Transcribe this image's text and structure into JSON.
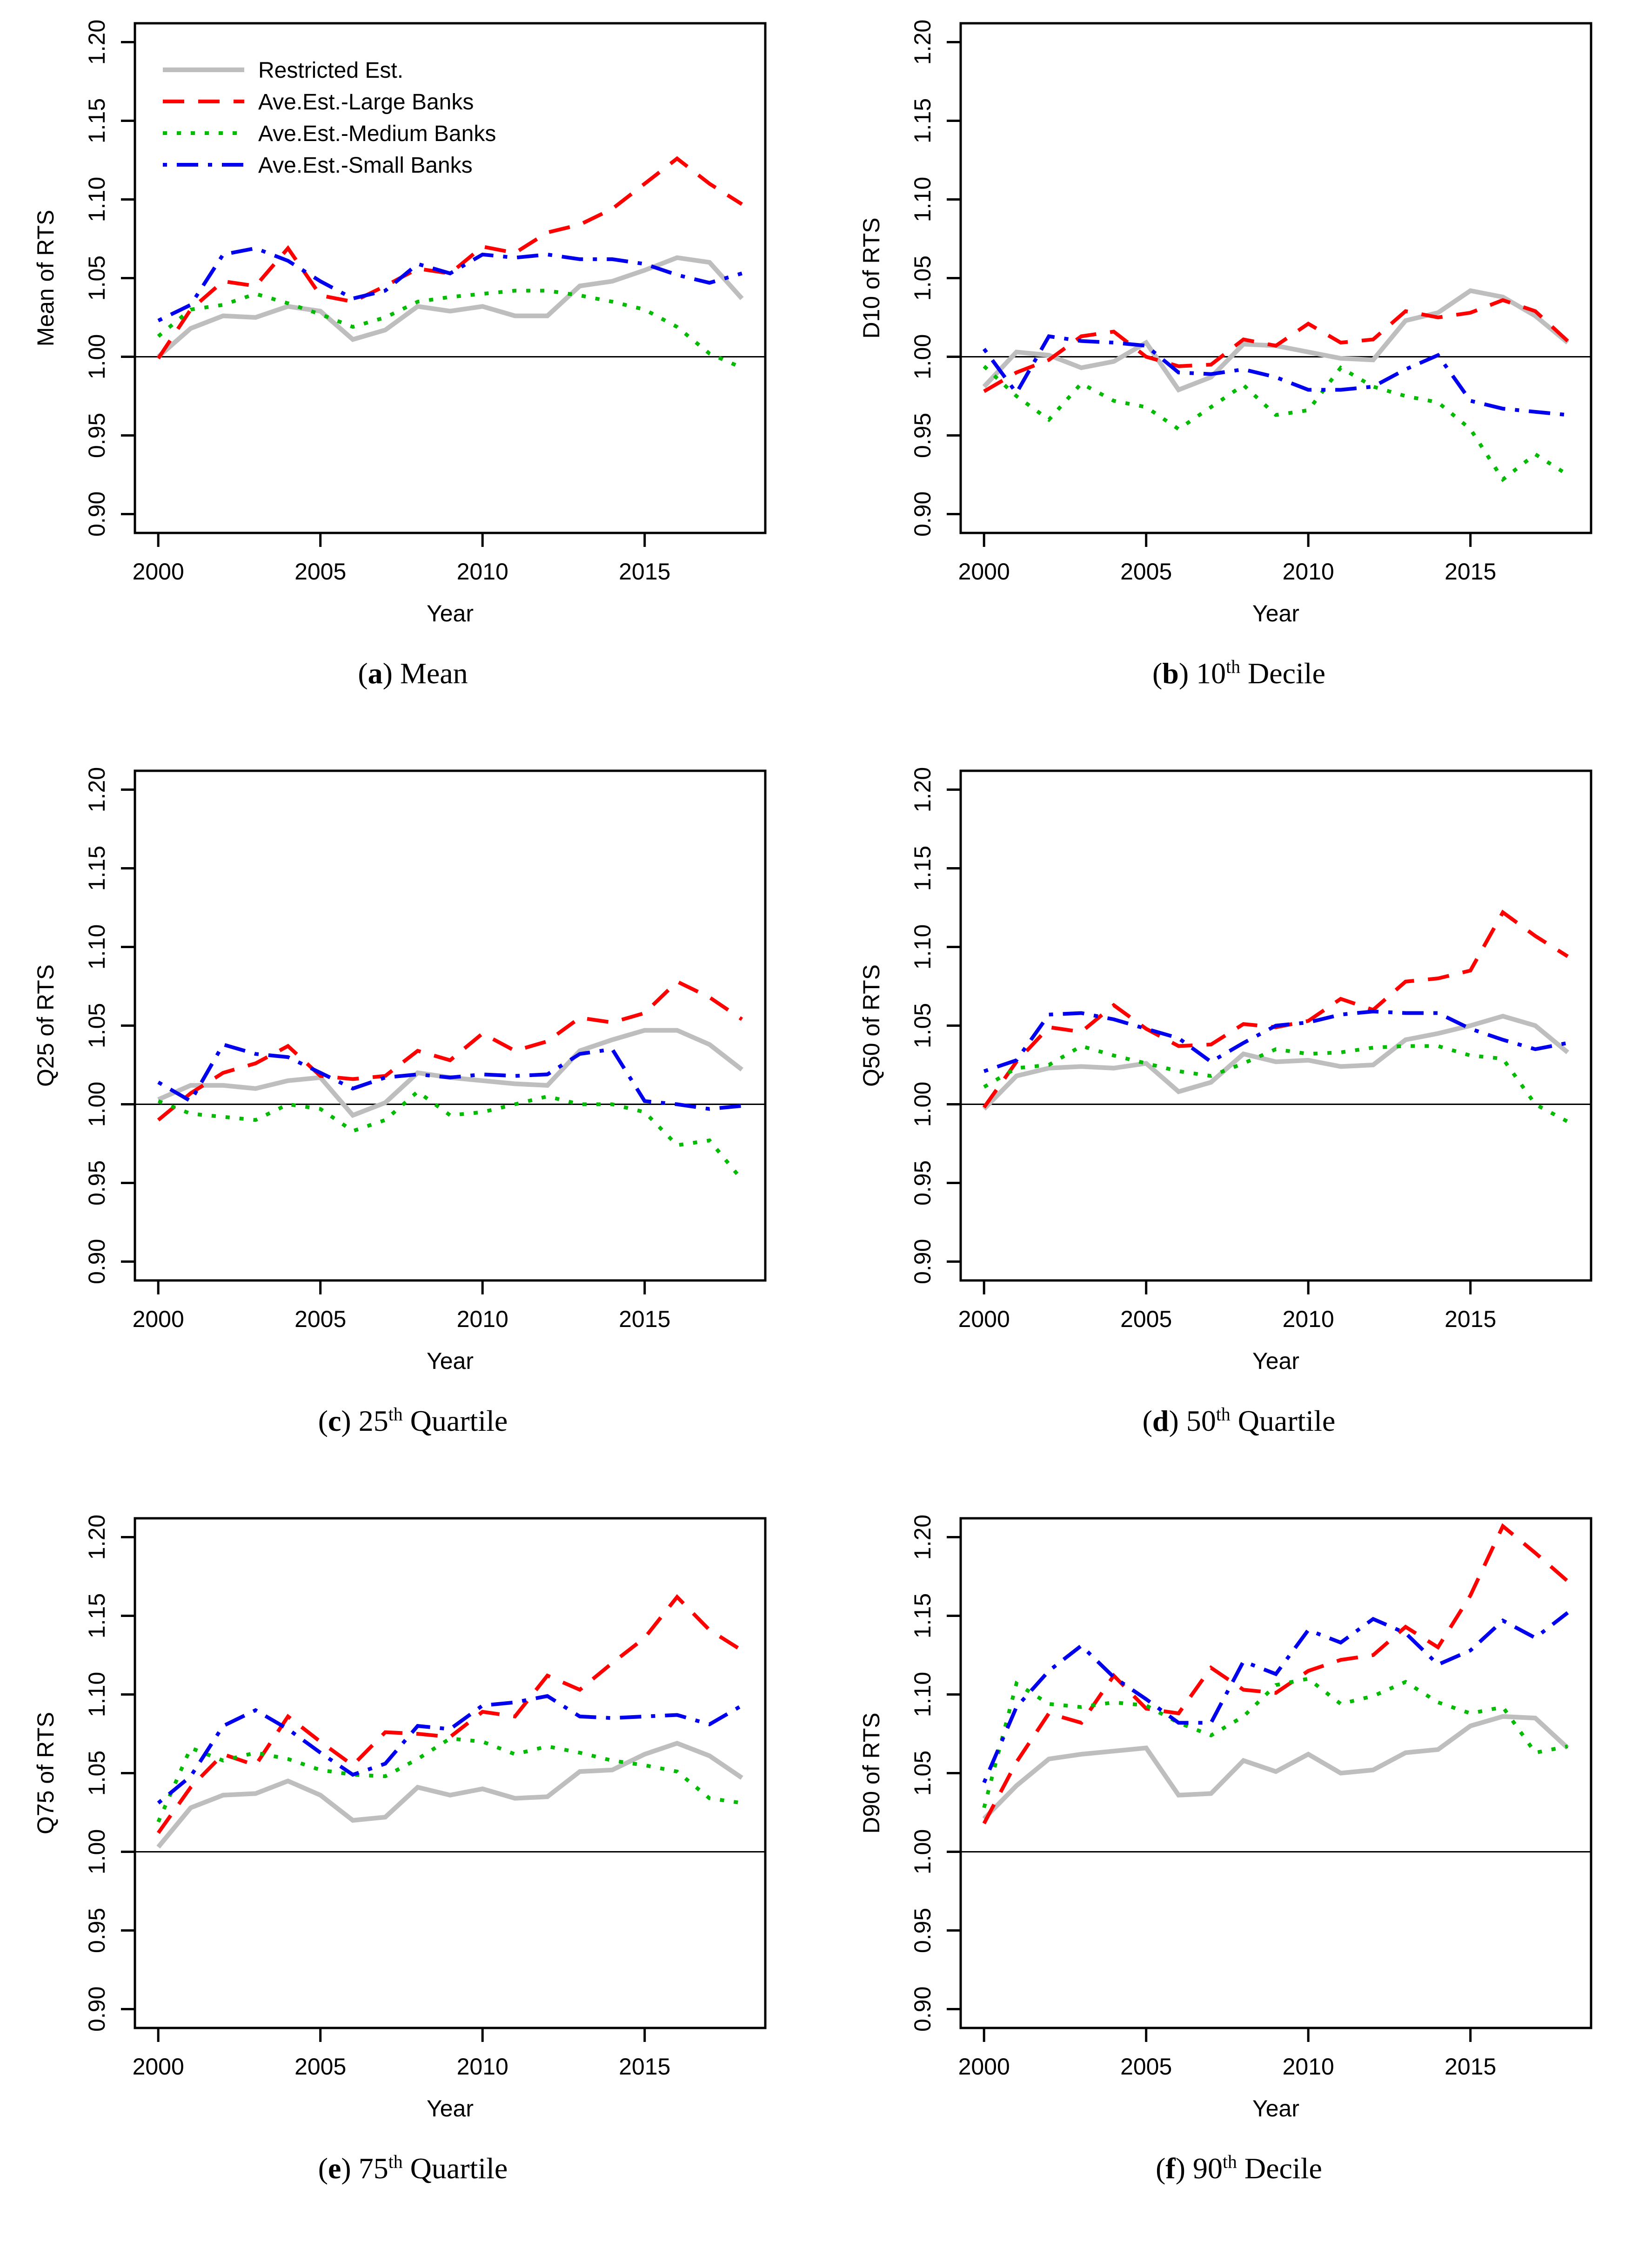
{
  "page": {
    "background": "#FFFFFF"
  },
  "axes": {
    "xlabel": "Year",
    "x_tick_labels": [
      "2000",
      "2005",
      "2010",
      "2015"
    ],
    "x_tick_years": [
      2000,
      2005,
      2010,
      2015
    ],
    "y_tick_labels": [
      "0.90",
      "0.95",
      "1.00",
      "1.05",
      "1.10",
      "1.15",
      "1.20"
    ],
    "y_tick_values": [
      0.9,
      0.95,
      1.0,
      1.05,
      1.1,
      1.15,
      1.2
    ],
    "x_range": [
      2000,
      2018
    ],
    "ylim": [
      0.9,
      1.2
    ],
    "reference_line_y": 1.0,
    "grid": "off",
    "y_tick_label_rotation_deg": 90
  },
  "legend": {
    "position": "top-left-of-panel-a",
    "items": [
      {
        "label": "Restricted Est.",
        "color": "#BEBEBE",
        "line_style": "solid"
      },
      {
        "label": "Ave.Est.-Large Banks",
        "color": "#FF0000",
        "line_style": "dashed"
      },
      {
        "label": "Ave.Est.-Medium Banks",
        "color": "#00BB00",
        "line_style": "dotted"
      },
      {
        "label": "Ave.Est.-Small Banks",
        "color": "#0000EE",
        "line_style": "dash-dot"
      }
    ]
  },
  "captions": [
    {
      "open": "(",
      "letter": "a",
      "close": ") ",
      "num": "",
      "sup": "",
      "text": "Mean"
    },
    {
      "open": "(",
      "letter": "b",
      "close": ") ",
      "num": "10",
      "sup": "th",
      "text": "Decile"
    },
    {
      "open": "(",
      "letter": "c",
      "close": ") ",
      "num": "25",
      "sup": "th",
      "text": "Quartile"
    },
    {
      "open": "(",
      "letter": "d",
      "close": ") ",
      "num": "50",
      "sup": "th",
      "text": "Quartile"
    },
    {
      "open": "(",
      "letter": "e",
      "close": ") ",
      "num": "75",
      "sup": "th",
      "text": "Quartile"
    },
    {
      "open": "(",
      "letter": "f",
      "close": ") ",
      "num": "90",
      "sup": "th",
      "text": "Decile"
    }
  ],
  "chart_data": [
    {
      "type": "line",
      "panel": "a",
      "caption": "(a) Mean",
      "ylabel": "Mean of RTS",
      "xlabel": "Year",
      "ylim": [
        0.9,
        1.2
      ],
      "has_legend": true,
      "x": [
        2000,
        2001,
        2002,
        2003,
        2004,
        2005,
        2006,
        2007,
        2008,
        2009,
        2010,
        2011,
        2012,
        2013,
        2014,
        2015,
        2016,
        2017,
        2018
      ],
      "series": [
        {
          "name": "Restricted Est.",
          "color": "#BEBEBE",
          "style": "solid",
          "values": [
            1.0,
            1.018,
            1.026,
            1.025,
            1.032,
            1.029,
            1.011,
            1.017,
            1.032,
            1.029,
            1.032,
            1.026,
            1.026,
            1.045,
            1.048,
            1.055,
            1.063,
            1.06,
            1.037
          ]
        },
        {
          "name": "Ave.Est.-Large Banks",
          "color": "#FF0000",
          "style": "dashed",
          "values": [
            0.999,
            1.03,
            1.048,
            1.045,
            1.069,
            1.039,
            1.035,
            1.045,
            1.056,
            1.053,
            1.07,
            1.066,
            1.079,
            1.084,
            1.094,
            1.11,
            1.126,
            1.11,
            1.097
          ]
        },
        {
          "name": "Ave.Est.-Medium Banks",
          "color": "#00BB00",
          "style": "dotted",
          "values": [
            1.013,
            1.03,
            1.033,
            1.04,
            1.034,
            1.027,
            1.019,
            1.025,
            1.035,
            1.038,
            1.04,
            1.042,
            1.042,
            1.039,
            1.035,
            1.03,
            1.019,
            1.002,
            0.993
          ]
        },
        {
          "name": "Ave.Est.-Small Banks",
          "color": "#0000EE",
          "style": "dash-dot",
          "values": [
            1.023,
            1.033,
            1.065,
            1.069,
            1.061,
            1.048,
            1.037,
            1.042,
            1.059,
            1.053,
            1.065,
            1.063,
            1.065,
            1.062,
            1.062,
            1.059,
            1.052,
            1.047,
            1.053
          ]
        }
      ]
    },
    {
      "type": "line",
      "panel": "b",
      "caption": "(b) 10th Decile",
      "ylabel": "D10 of RTS",
      "xlabel": "Year",
      "ylim": [
        0.9,
        1.2
      ],
      "has_legend": false,
      "x": [
        2000,
        2001,
        2002,
        2003,
        2004,
        2005,
        2006,
        2007,
        2008,
        2009,
        2010,
        2011,
        2012,
        2013,
        2014,
        2015,
        2016,
        2017,
        2018
      ],
      "series": [
        {
          "name": "Restricted Est.",
          "color": "#BEBEBE",
          "style": "solid",
          "values": [
            0.981,
            1.003,
            1.001,
            0.993,
            0.997,
            1.009,
            0.979,
            0.987,
            1.008,
            1.007,
            1.003,
            0.999,
            0.998,
            1.023,
            1.028,
            1.042,
            1.038,
            1.026,
            1.009
          ]
        },
        {
          "name": "Ave.Est.-Large Banks",
          "color": "#FF0000",
          "style": "dashed",
          "values": [
            0.978,
            0.99,
            0.998,
            1.013,
            1.016,
            1.0,
            0.994,
            0.995,
            1.011,
            1.007,
            1.021,
            1.009,
            1.011,
            1.029,
            1.025,
            1.028,
            1.036,
            1.029,
            1.01
          ]
        },
        {
          "name": "Ave.Est.-Medium Banks",
          "color": "#00BB00",
          "style": "dotted",
          "values": [
            0.994,
            0.975,
            0.96,
            0.983,
            0.972,
            0.968,
            0.954,
            0.968,
            0.982,
            0.963,
            0.966,
            0.993,
            0.981,
            0.975,
            0.971,
            0.954,
            0.922,
            0.938,
            0.925
          ]
        },
        {
          "name": "Ave.Est.-Small Banks",
          "color": "#0000EE",
          "style": "dash-dot",
          "values": [
            1.005,
            0.977,
            1.013,
            1.01,
            1.009,
            1.007,
            0.99,
            0.989,
            0.992,
            0.987,
            0.979,
            0.979,
            0.981,
            0.992,
            1.001,
            0.972,
            0.967,
            0.965,
            0.963
          ]
        }
      ]
    },
    {
      "type": "line",
      "panel": "c",
      "caption": "(c) 25th Quartile",
      "ylabel": "Q25 of RTS",
      "xlabel": "Year",
      "ylim": [
        0.9,
        1.2
      ],
      "has_legend": false,
      "x": [
        2000,
        2001,
        2002,
        2003,
        2004,
        2005,
        2006,
        2007,
        2008,
        2009,
        2010,
        2011,
        2012,
        2013,
        2014,
        2015,
        2016,
        2017,
        2018
      ],
      "series": [
        {
          "name": "Restricted Est.",
          "color": "#BEBEBE",
          "style": "solid",
          "values": [
            1.003,
            1.012,
            1.012,
            1.01,
            1.015,
            1.017,
            0.993,
            1.001,
            1.02,
            1.017,
            1.015,
            1.013,
            1.012,
            1.034,
            1.041,
            1.047,
            1.047,
            1.038,
            1.022
          ]
        },
        {
          "name": "Ave.Est.-Large Banks",
          "color": "#FF0000",
          "style": "dashed",
          "values": [
            0.99,
            1.007,
            1.02,
            1.026,
            1.037,
            1.018,
            1.016,
            1.018,
            1.034,
            1.028,
            1.045,
            1.034,
            1.04,
            1.055,
            1.052,
            1.058,
            1.078,
            1.068,
            1.054
          ]
        },
        {
          "name": "Ave.Est.-Medium Banks",
          "color": "#00BB00",
          "style": "dotted",
          "values": [
            1.002,
            0.994,
            0.992,
            0.99,
            1.0,
            0.997,
            0.983,
            0.99,
            1.008,
            0.993,
            0.995,
            1.0,
            1.005,
            1.0,
            1.0,
            0.995,
            0.974,
            0.977,
            0.952
          ]
        },
        {
          "name": "Ave.Est.-Small Banks",
          "color": "#0000EE",
          "style": "dash-dot",
          "values": [
            1.014,
            1.002,
            1.038,
            1.032,
            1.03,
            1.02,
            1.01,
            1.017,
            1.019,
            1.017,
            1.019,
            1.018,
            1.019,
            1.032,
            1.035,
            1.002,
            1.0,
            0.997,
            0.999
          ]
        }
      ]
    },
    {
      "type": "line",
      "panel": "d",
      "caption": "(d) 50th Quartile",
      "ylabel": "Q50 of RTS",
      "xlabel": "Year",
      "ylim": [
        0.9,
        1.2
      ],
      "has_legend": false,
      "x": [
        2000,
        2001,
        2002,
        2003,
        2004,
        2005,
        2006,
        2007,
        2008,
        2009,
        2010,
        2011,
        2012,
        2013,
        2014,
        2015,
        2016,
        2017,
        2018
      ],
      "series": [
        {
          "name": "Restricted Est.",
          "color": "#BEBEBE",
          "style": "solid",
          "values": [
            0.997,
            1.018,
            1.023,
            1.024,
            1.023,
            1.026,
            1.008,
            1.014,
            1.032,
            1.027,
            1.028,
            1.024,
            1.025,
            1.041,
            1.045,
            1.05,
            1.056,
            1.05,
            1.033
          ]
        },
        {
          "name": "Ave.Est.-Large Banks",
          "color": "#FF0000",
          "style": "dashed",
          "values": [
            0.998,
            1.027,
            1.049,
            1.046,
            1.063,
            1.048,
            1.037,
            1.038,
            1.051,
            1.049,
            1.053,
            1.067,
            1.06,
            1.078,
            1.08,
            1.085,
            1.122,
            1.107,
            1.094
          ]
        },
        {
          "name": "Ave.Est.-Medium Banks",
          "color": "#00BB00",
          "style": "dotted",
          "values": [
            1.011,
            1.023,
            1.025,
            1.037,
            1.031,
            1.026,
            1.021,
            1.018,
            1.026,
            1.035,
            1.032,
            1.033,
            1.036,
            1.037,
            1.037,
            1.031,
            1.029,
            1.0,
            0.989
          ]
        },
        {
          "name": "Ave.Est.-Small Banks",
          "color": "#0000EE",
          "style": "dash-dot",
          "values": [
            1.021,
            1.028,
            1.057,
            1.058,
            1.054,
            1.048,
            1.042,
            1.027,
            1.039,
            1.05,
            1.052,
            1.057,
            1.059,
            1.058,
            1.058,
            1.048,
            1.041,
            1.035,
            1.039
          ]
        }
      ]
    },
    {
      "type": "line",
      "panel": "e",
      "caption": "(e) 75th Quartile",
      "ylabel": "Q75 of RTS",
      "xlabel": "Year",
      "ylim": [
        0.9,
        1.2
      ],
      "has_legend": false,
      "x": [
        2000,
        2001,
        2002,
        2003,
        2004,
        2005,
        2006,
        2007,
        2008,
        2009,
        2010,
        2011,
        2012,
        2013,
        2014,
        2015,
        2016,
        2017,
        2018
      ],
      "series": [
        {
          "name": "Restricted Est.",
          "color": "#BEBEBE",
          "style": "solid",
          "values": [
            1.003,
            1.028,
            1.036,
            1.037,
            1.045,
            1.036,
            1.02,
            1.022,
            1.041,
            1.036,
            1.04,
            1.034,
            1.035,
            1.051,
            1.052,
            1.062,
            1.069,
            1.061,
            1.047
          ]
        },
        {
          "name": "Ave.Est.-Large Banks",
          "color": "#FF0000",
          "style": "dashed",
          "values": [
            1.012,
            1.041,
            1.062,
            1.055,
            1.086,
            1.07,
            1.055,
            1.076,
            1.075,
            1.073,
            1.089,
            1.086,
            1.112,
            1.103,
            1.12,
            1.136,
            1.162,
            1.141,
            1.128
          ]
        },
        {
          "name": "Ave.Est.-Medium Banks",
          "color": "#00BB00",
          "style": "dotted",
          "values": [
            1.019,
            1.066,
            1.058,
            1.063,
            1.059,
            1.052,
            1.049,
            1.048,
            1.059,
            1.072,
            1.07,
            1.062,
            1.067,
            1.063,
            1.058,
            1.055,
            1.051,
            1.034,
            1.031
          ]
        },
        {
          "name": "Ave.Est.-Small Banks",
          "color": "#0000EE",
          "style": "dash-dot",
          "values": [
            1.031,
            1.048,
            1.08,
            1.09,
            1.078,
            1.063,
            1.049,
            1.056,
            1.08,
            1.078,
            1.093,
            1.095,
            1.099,
            1.086,
            1.085,
            1.086,
            1.087,
            1.081,
            1.093
          ]
        }
      ]
    },
    {
      "type": "line",
      "panel": "f",
      "caption": "(f) 90th Decile",
      "ylabel": "D90 of RTS",
      "xlabel": "Year",
      "ylim": [
        0.9,
        1.2
      ],
      "has_legend": false,
      "x": [
        2000,
        2001,
        2002,
        2003,
        2004,
        2005,
        2006,
        2007,
        2008,
        2009,
        2010,
        2011,
        2012,
        2013,
        2014,
        2015,
        2016,
        2017,
        2018
      ],
      "series": [
        {
          "name": "Restricted Est.",
          "color": "#BEBEBE",
          "style": "solid",
          "values": [
            1.021,
            1.042,
            1.059,
            1.062,
            1.064,
            1.066,
            1.036,
            1.037,
            1.058,
            1.051,
            1.062,
            1.05,
            1.052,
            1.063,
            1.065,
            1.08,
            1.086,
            1.085,
            1.066
          ]
        },
        {
          "name": "Ave.Est.-Large Banks",
          "color": "#FF0000",
          "style": "dashed",
          "values": [
            1.018,
            1.057,
            1.088,
            1.082,
            1.112,
            1.091,
            1.088,
            1.117,
            1.103,
            1.101,
            1.115,
            1.122,
            1.125,
            1.143,
            1.13,
            1.163,
            1.207,
            1.19,
            1.172
          ]
        },
        {
          "name": "Ave.Est.-Medium Banks",
          "color": "#00BB00",
          "style": "dotted",
          "values": [
            1.028,
            1.107,
            1.094,
            1.092,
            1.095,
            1.093,
            1.082,
            1.074,
            1.086,
            1.106,
            1.11,
            1.094,
            1.099,
            1.108,
            1.095,
            1.088,
            1.092,
            1.063,
            1.067
          ]
        },
        {
          "name": "Ave.Est.-Small Banks",
          "color": "#0000EE",
          "style": "dash-dot",
          "values": [
            1.044,
            1.092,
            1.115,
            1.131,
            1.111,
            1.097,
            1.082,
            1.082,
            1.121,
            1.113,
            1.141,
            1.133,
            1.148,
            1.139,
            1.119,
            1.128,
            1.147,
            1.136,
            1.152
          ]
        }
      ]
    }
  ]
}
